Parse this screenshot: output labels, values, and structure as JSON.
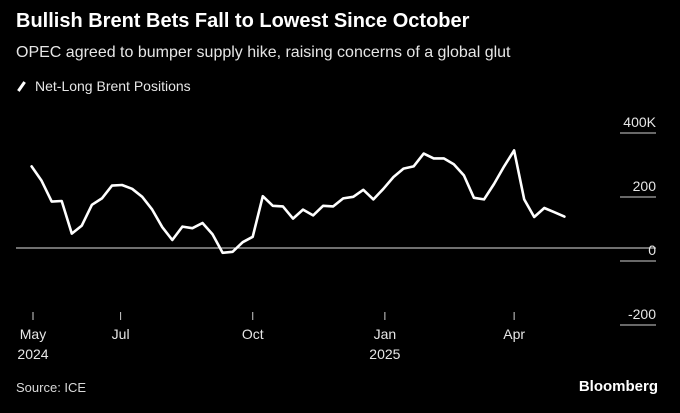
{
  "chart_data": {
    "type": "line",
    "title": "Bullish Brent Bets Fall to Lowest Since October",
    "subtitle": "OPEC agreed to bumper supply hike, raising concerns of a global glut",
    "xlabel": "",
    "ylabel": "",
    "ylim": [
      -200,
      400
    ],
    "yticks": [
      {
        "value": 400,
        "label": "400K"
      },
      {
        "value": 200,
        "label": "200"
      },
      {
        "value": 0,
        "label": "0"
      },
      {
        "value": -200,
        "label": "-200"
      }
    ],
    "xticks": [
      {
        "date": "2024-05-01",
        "label": "May",
        "sublabel": "2024"
      },
      {
        "date": "2024-07-01",
        "label": "Jul",
        "sublabel": ""
      },
      {
        "date": "2024-10-01",
        "label": "Oct",
        "sublabel": ""
      },
      {
        "date": "2025-01-01",
        "label": "Jan",
        "sublabel": "2025"
      },
      {
        "date": "2025-04-01",
        "label": "Apr",
        "sublabel": ""
      }
    ],
    "xlim": [
      "2024-05-01",
      "2025-05-28"
    ],
    "grid": false,
    "legend_position": "top-left",
    "series": [
      {
        "name": "Net-Long Brent Positions",
        "color": "#ffffff",
        "points": [
          {
            "x": "2024-04-30",
            "y": 255
          },
          {
            "x": "2024-05-07",
            "y": 210
          },
          {
            "x": "2024-05-14",
            "y": 145
          },
          {
            "x": "2024-05-21",
            "y": 147
          },
          {
            "x": "2024-05-28",
            "y": 45
          },
          {
            "x": "2024-06-04",
            "y": 70
          },
          {
            "x": "2024-06-11",
            "y": 135
          },
          {
            "x": "2024-06-18",
            "y": 155
          },
          {
            "x": "2024-06-25",
            "y": 195
          },
          {
            "x": "2024-07-02",
            "y": 197
          },
          {
            "x": "2024-07-09",
            "y": 185
          },
          {
            "x": "2024-07-16",
            "y": 160
          },
          {
            "x": "2024-07-23",
            "y": 120
          },
          {
            "x": "2024-07-30",
            "y": 65
          },
          {
            "x": "2024-08-06",
            "y": 25
          },
          {
            "x": "2024-08-13",
            "y": 67
          },
          {
            "x": "2024-08-20",
            "y": 62
          },
          {
            "x": "2024-08-27",
            "y": 78
          },
          {
            "x": "2024-09-03",
            "y": 43
          },
          {
            "x": "2024-09-10",
            "y": -15
          },
          {
            "x": "2024-09-17",
            "y": -12
          },
          {
            "x": "2024-09-24",
            "y": 18
          },
          {
            "x": "2024-10-01",
            "y": 35
          },
          {
            "x": "2024-10-08",
            "y": 162
          },
          {
            "x": "2024-10-15",
            "y": 132
          },
          {
            "x": "2024-10-22",
            "y": 130
          },
          {
            "x": "2024-10-29",
            "y": 92
          },
          {
            "x": "2024-11-05",
            "y": 120
          },
          {
            "x": "2024-11-12",
            "y": 102
          },
          {
            "x": "2024-11-19",
            "y": 132
          },
          {
            "x": "2024-11-26",
            "y": 130
          },
          {
            "x": "2024-12-03",
            "y": 155
          },
          {
            "x": "2024-12-10",
            "y": 160
          },
          {
            "x": "2024-12-17",
            "y": 182
          },
          {
            "x": "2024-12-24",
            "y": 152
          },
          {
            "x": "2024-12-31",
            "y": 185
          },
          {
            "x": "2025-01-07",
            "y": 222
          },
          {
            "x": "2025-01-14",
            "y": 248
          },
          {
            "x": "2025-01-21",
            "y": 255
          },
          {
            "x": "2025-01-28",
            "y": 295
          },
          {
            "x": "2025-02-04",
            "y": 280
          },
          {
            "x": "2025-02-11",
            "y": 280
          },
          {
            "x": "2025-02-18",
            "y": 262
          },
          {
            "x": "2025-02-25",
            "y": 227
          },
          {
            "x": "2025-03-04",
            "y": 157
          },
          {
            "x": "2025-03-11",
            "y": 152
          },
          {
            "x": "2025-03-18",
            "y": 200
          },
          {
            "x": "2025-03-25",
            "y": 255
          },
          {
            "x": "2025-04-01",
            "y": 305
          },
          {
            "x": "2025-04-08",
            "y": 152
          },
          {
            "x": "2025-04-15",
            "y": 97
          },
          {
            "x": "2025-04-22",
            "y": 125
          },
          {
            "x": "2025-04-29",
            "y": 112
          },
          {
            "x": "2025-05-06",
            "y": 98
          }
        ]
      }
    ]
  },
  "footer": {
    "source": "Source: ICE",
    "brand": "Bloomberg"
  }
}
